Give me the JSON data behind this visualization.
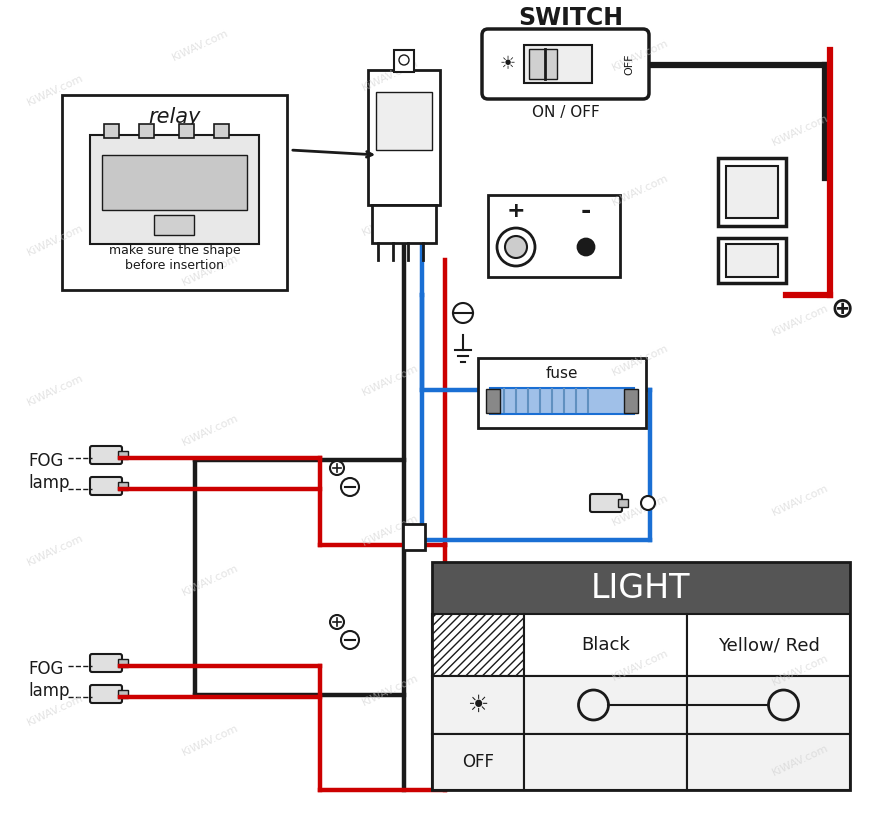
{
  "bg_color": "#ffffff",
  "line_color": "#1a1a1a",
  "red_wire": "#cc0000",
  "blue_wire": "#1a6fd4",
  "black_wire": "#1a1a1a",
  "switch_label": "SWITCH",
  "switch_sub": "ON / OFF",
  "relay_label": "relay",
  "relay_sub": "make sure the shape\nbefore insertion",
  "fuse_label": "fuse",
  "fog_lamp_upper": "FOG\nlamp",
  "fog_lamp_lower": "FOG\nlamp",
  "table_header": "LIGHT",
  "table_col1": "Black",
  "table_col2": "Yellow/ Red",
  "table_row_off": "OFF",
  "watermark": "KiWAV.com",
  "watermark_color": "#cccccc",
  "plus_sign": "+",
  "minus_sign": "-",
  "earth_sign": "⊕"
}
